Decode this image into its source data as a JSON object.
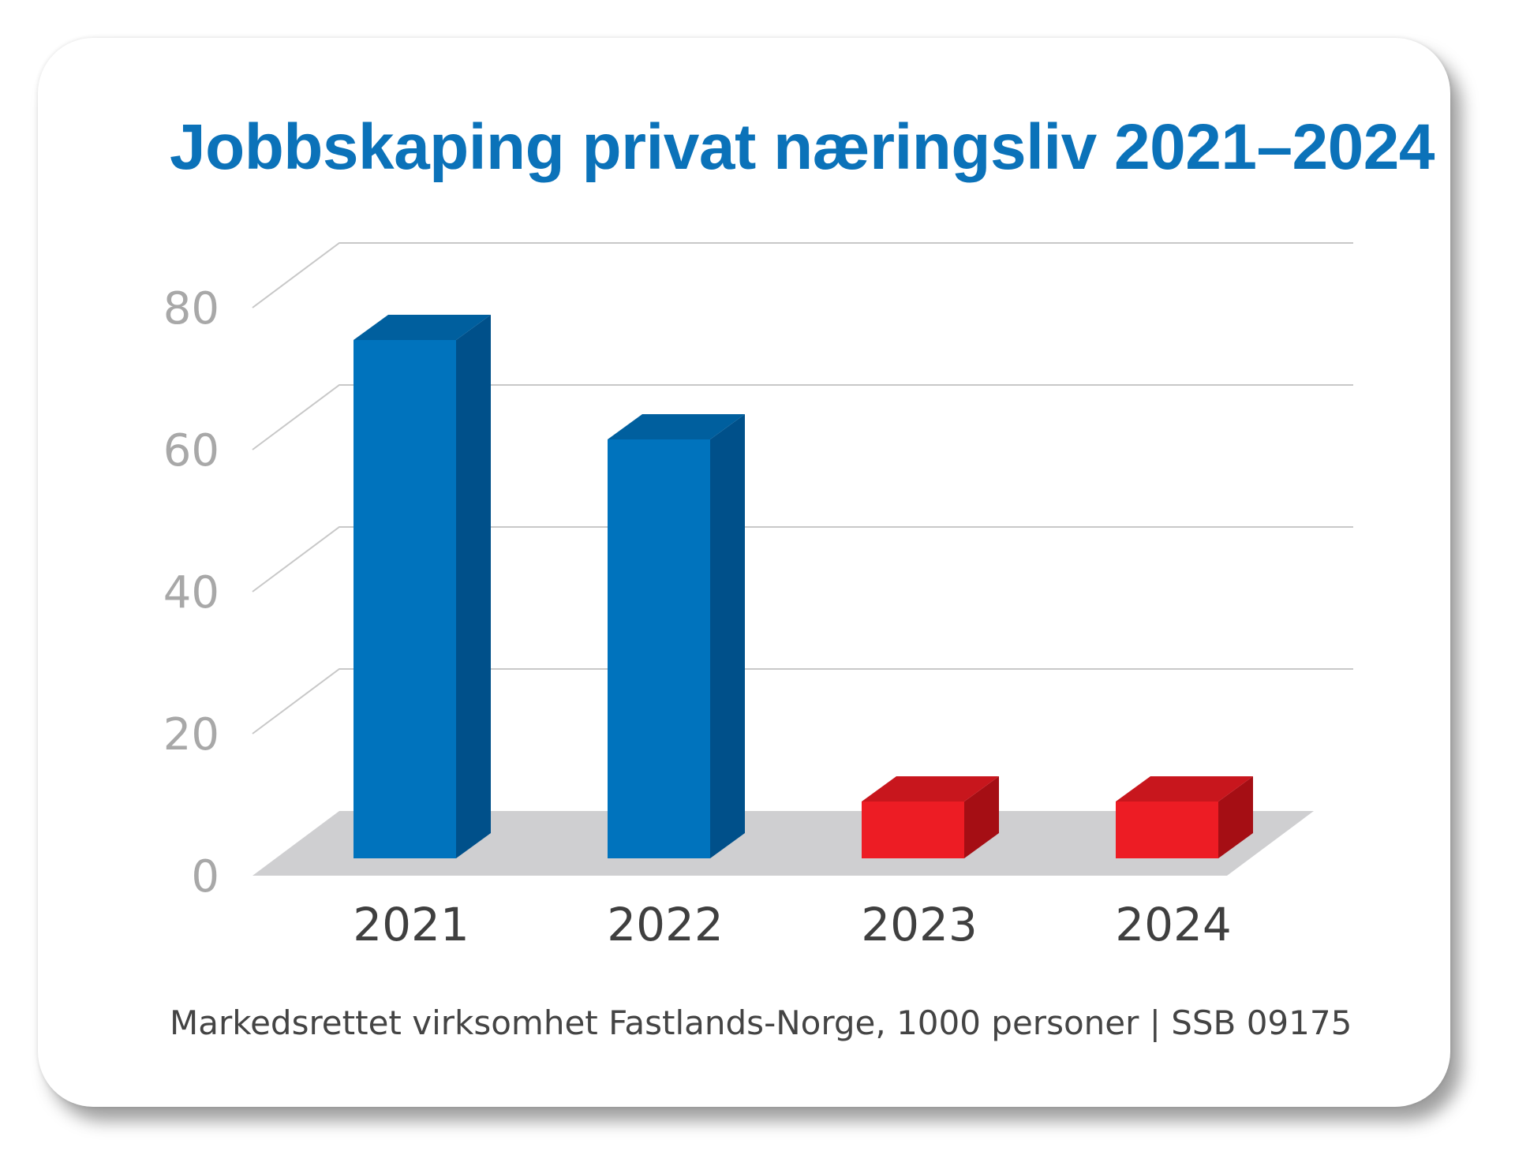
{
  "chart_data": {
    "type": "bar",
    "title": "Jobbskaping privat næringsliv 2021–2024",
    "footnote": "Markedsrettet virksomhet Fastlands-Norge, 1000 personer | SSB 09175",
    "categories": [
      "2021",
      "2022",
      "2023",
      "2024"
    ],
    "values": [
      73,
      59,
      8,
      8
    ],
    "ylim": [
      0,
      80
    ],
    "yticks": [
      "0",
      "20",
      "40",
      "60",
      "80"
    ],
    "grid": true,
    "xlabel": "",
    "ylabel": "",
    "colors": {
      "positive_front": "#0073bd",
      "positive_top": "#005f9e",
      "positive_side": "#00508a",
      "low_front": "#ed1c24",
      "low_top": "#c8161d",
      "low_side": "#a50e14",
      "floor": "#cfcfd1",
      "gridline": "#c8c8c8"
    },
    "bar_color_group": [
      "positive",
      "positive",
      "low",
      "low"
    ]
  }
}
